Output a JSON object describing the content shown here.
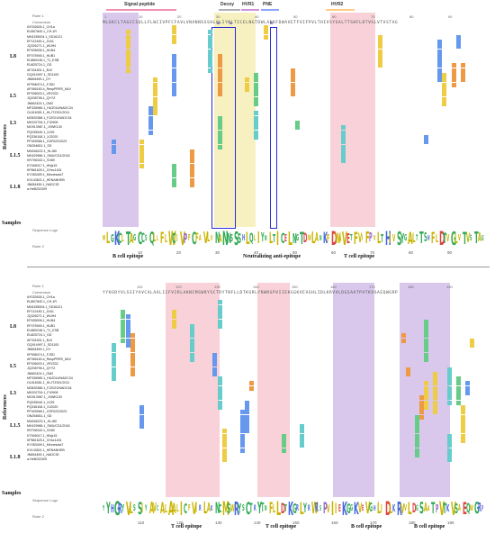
{
  "panels": {
    "top": {
      "headers": [
        {
          "label": "Signal peptide",
          "color": "#f48fb1"
        },
        {
          "label": "Decoy",
          "color": "#b0b0b0"
        },
        {
          "label": "HVR1",
          "color": "#ce93d8"
        },
        {
          "label": "PNE",
          "color": "#90a4ff"
        },
        {
          "label": "HVR2",
          "color": "#ffcc80"
        }
      ],
      "ruler1_label": "Ruler 1",
      "consensus_label": "Consensus",
      "consensus_seq": "MLGKCLTAGCCSQLLFLWCIVPFCFAVLVNANNSSSHLQLIYNLTICELNGTDWLANKFDWAVETFVIFPVLTHIVSYGALTTSHFLDTVGLVTVSTAG",
      "ruler_top_ticks": [
        "1",
        "10",
        "20",
        "30",
        "40",
        "50",
        "60",
        "70",
        "80",
        "90"
      ],
      "sequence_logo_label": "Sequence Logo",
      "ruler2_label": "Ruler 2",
      "ruler_bottom_ticks": [
        "10",
        "20",
        "30",
        "40",
        "50",
        "60",
        "70",
        "80",
        "90"
      ],
      "hvr_markers": [
        "N",
        "N",
        "N"
      ],
      "epitopes": [
        {
          "label": "B cell epitope"
        },
        {
          "label": "Neutralizing anti-epitope"
        },
        {
          "label": "T cell epitope"
        }
      ]
    },
    "bottom": {
      "ruler1_label": "Ruler 1",
      "consensus_label": "Consensus",
      "consensus_seq": "YYHGRYVLSSIYAVCALAALICFVIRLAKNCMSWRYSCTRYTNFLLDTKGRLYRWRSPVIIEKGGKVEVGHLIDLKRVVLDGSAATPVTKVSAEQWGRP",
      "ruler_top_ticks": [
        "110",
        "120",
        "130",
        "140",
        "150",
        "160",
        "170",
        "180",
        "190"
      ],
      "sequence_logo_label": "Sequence Logo",
      "ruler2_label": "Ruler 2",
      "ruler_bottom_ticks": [
        "110",
        "120",
        "130",
        "140",
        "150",
        "160",
        "170",
        "180",
        "190"
      ],
      "epitopes": [
        {
          "label": "T cell epitope"
        },
        {
          "label": "T cell epitope"
        },
        {
          "label": "B cell epitope"
        },
        {
          "label": "B cell epitope"
        }
      ]
    }
  },
  "side_label": "References",
  "samples_label": "Samples",
  "groups": [
    "L8",
    "L5",
    "L3",
    "L1.5",
    "L1.8"
  ],
  "sequences": [
    "AY032626.1_CH1a",
    "EU807840.1_CH-1R",
    "MN1155004.1_SD16121",
    "EF112445.1_JXA1",
    "JQ326271.1_WUH4",
    "EF635006.1_HUN4",
    "EF075945.1_HUB1",
    "EU860248.1_T1_ESB",
    "EU825724.1_GD",
    "AF331831.1_BJ4",
    "GQ914997.1_SD1100",
    "JN654459.1_DY",
    "KP998474.1_FJSD",
    "AF066183.4_RespPRRS_MLV",
    "EF536003.1_VR2332",
    "JQ208798.1_QYYZ",
    "JN662424.1_GM2",
    "MF326985.1_HUZ014/NADC34",
    "OL516351.1_HLJTZ921/2011",
    "MZ820388.1_FJZ021/NADC34",
    "MK202794.1_FJ0908",
    "MG913987.1_JXWK130",
    "PQ035040.1_XJ25",
    "PQ336108.1_XJ2020",
    "PP409066.1_GSF022/2023",
    "ON254651.1_SD",
    "MN046222.1_HLJ80",
    "MK429986.1_SMU/CD1/2018",
    "KR706343.1_SX80",
    "KT945017.1_HNjz15",
    "KP861625.1_CHsx1401",
    "KY283409.1_Minnesota7",
    "KX143621.1_HENANHEB",
    "JN654459.1_NADC30",
    "a.HeB202309"
  ],
  "colors": {
    "purple_region": "#d9c8ec",
    "pink_region": "#f8d2d8",
    "yellow_region": "#f7f0c0",
    "box_outline": "#2a2ad0",
    "green": "#66cc88",
    "teal": "#66cccc",
    "yellow": "#eecc44",
    "blue": "#6699ee",
    "orange": "#ee9944"
  }
}
